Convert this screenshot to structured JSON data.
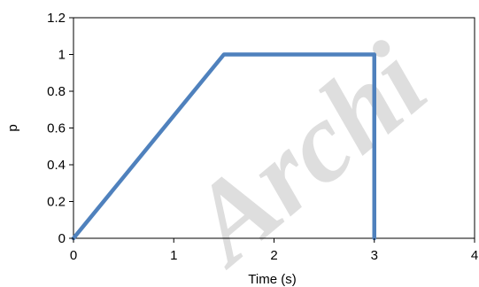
{
  "colors": {
    "series": "#4F81BD",
    "axis": "#000000",
    "background": "#FFFFFF"
  },
  "watermark": {
    "text": "Archi"
  },
  "chart_data": {
    "type": "line",
    "title": "",
    "xlabel": "Time (s)",
    "ylabel": "p",
    "xlim": [
      0,
      4
    ],
    "ylim": [
      0,
      1.2
    ],
    "x_ticks": [
      0,
      1,
      2,
      3,
      4
    ],
    "x_tick_labels": [
      "0",
      "1",
      "2",
      "3",
      "4"
    ],
    "y_ticks": [
      0,
      0.2,
      0.4,
      0.6,
      0.8,
      1,
      1.2
    ],
    "y_tick_labels": [
      "0",
      "0.2",
      "0.4",
      "0.6",
      "0.8",
      "1",
      "1.2"
    ],
    "grid": false,
    "legend": "none",
    "series": [
      {
        "color": "#4F81BD",
        "x": [
          0,
          1.5,
          3,
          3
        ],
        "y": [
          0,
          1,
          1,
          0
        ]
      }
    ]
  }
}
